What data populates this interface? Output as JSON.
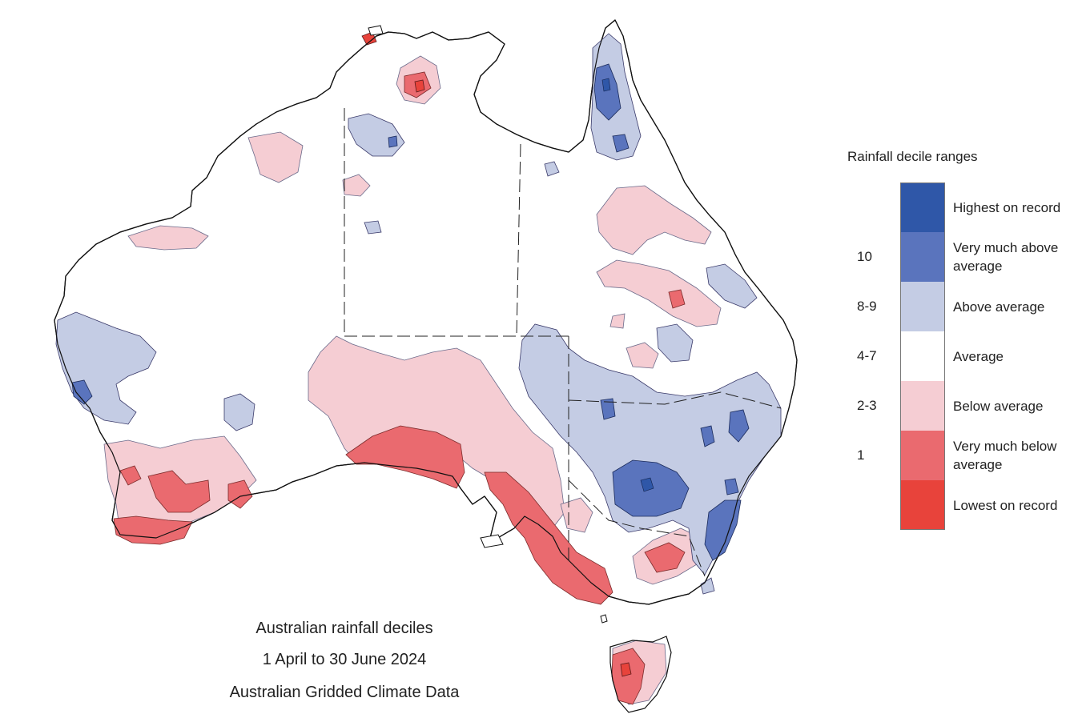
{
  "caption": {
    "line1": "Australian rainfall deciles",
    "line2": "1 April to 30 June 2024",
    "line3": "Australian Gridded Climate Data"
  },
  "legend": {
    "title": "Rainfall decile ranges",
    "items": [
      {
        "decile": "",
        "label": "Highest on record",
        "color": "#2f57a8"
      },
      {
        "decile": "10",
        "label": "Very much above average",
        "color": "#5a74bd"
      },
      {
        "decile": "8-9",
        "label": "Above average",
        "color": "#c4cce4"
      },
      {
        "decile": "4-7",
        "label": "Average",
        "color": "#ffffff"
      },
      {
        "decile": "2-3",
        "label": "Below average",
        "color": "#f5cdd3"
      },
      {
        "decile": "1",
        "label": "Very much below average",
        "color": "#ea6a6f"
      },
      {
        "decile": "",
        "label": "Lowest on record",
        "color": "#e8433b"
      }
    ]
  },
  "colors": {
    "coastline": "#111111",
    "border": "#222222",
    "average": "#ffffff"
  }
}
